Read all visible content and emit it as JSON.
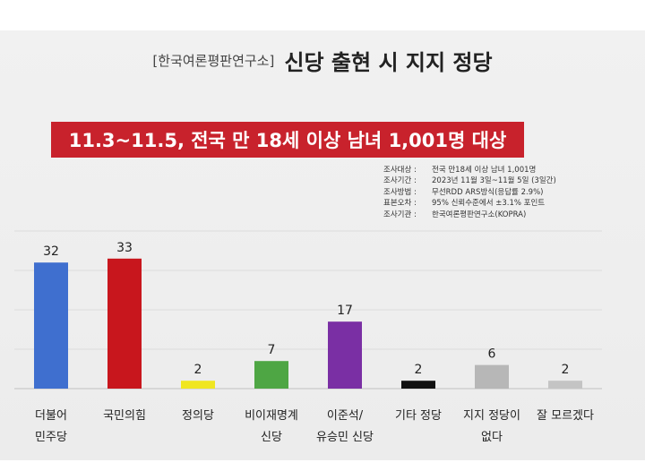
{
  "header": {
    "source": "[한국여론평판연구소]",
    "title": "신당 출현 시 지지 정당",
    "banner": "11.3~11.5, 전국 만 18세 이상 남녀 1,001명 대상"
  },
  "survey_info": [
    {
      "key": "조사대상 :",
      "value": "전국 만18세 이상 남녀 1,001명"
    },
    {
      "key": "조사기간 :",
      "value": "2023년 11월 3일~11월 5일 (3일간)"
    },
    {
      "key": "조사방법 :",
      "value": "무선RDD ARS방식(응답률 2.9%)"
    },
    {
      "key": "표본오차 :",
      "value": "95% 신뢰수준에서 ±3.1% 포인트"
    },
    {
      "key": "조사기관 :",
      "value": "한국여론평판연구소(KOPRA)"
    }
  ],
  "chart_data": {
    "type": "bar",
    "categories": [
      [
        "더불어",
        "민주당"
      ],
      [
        "국민의힘"
      ],
      [
        "정의당"
      ],
      [
        "비이재명계",
        "신당"
      ],
      [
        "이준석/",
        "유승민 신당"
      ],
      [
        "기타 정당"
      ],
      [
        "지지 정당이",
        "없다"
      ],
      [
        "잘 모르겠다"
      ]
    ],
    "values": [
      32,
      33,
      2,
      7,
      17,
      2,
      6,
      2
    ],
    "colors": [
      "#3f6fcf",
      "#c8161d",
      "#f0e621",
      "#4ea644",
      "#7a2fa4",
      "#111111",
      "#b7b7b7",
      "#c4c4c4"
    ],
    "ylim": [
      0,
      40
    ],
    "grid": true
  }
}
